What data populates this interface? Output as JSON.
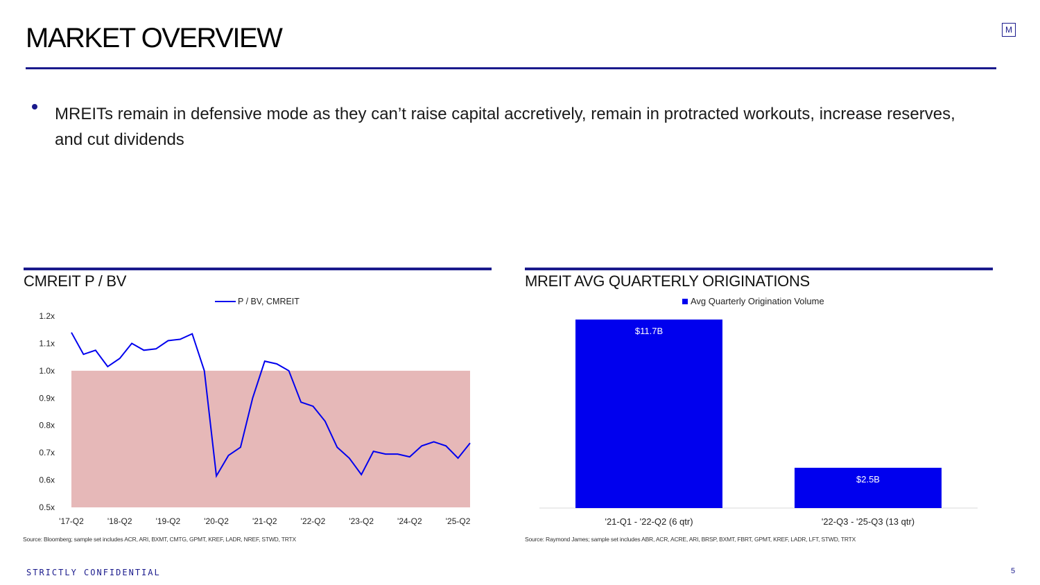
{
  "header": {
    "title": "MARKET OVERVIEW",
    "logo_letter": "M"
  },
  "bullet": {
    "text": "MREITs remain in defensive mode as they can’t raise capital accretively, remain in protracted workouts, increase reserves, and cut dividends"
  },
  "colors": {
    "navy": "#1a1a8c",
    "series_blue": "#0000ee",
    "band_fill": "#e6b8b8"
  },
  "chart_data": [
    {
      "type": "line",
      "section_title": "CMREIT P / BV",
      "series": [
        {
          "name": "P / BV, CMREIT",
          "values": [
            1.14,
            1.06,
            1.075,
            1.015,
            1.045,
            1.1,
            1.075,
            1.08,
            1.11,
            1.115,
            1.135,
            1.0,
            0.615,
            0.69,
            0.72,
            0.9,
            1.035,
            1.025,
            1.0,
            0.885,
            0.87,
            0.815,
            0.72,
            0.68,
            0.62,
            0.705,
            0.695,
            0.695,
            0.685,
            0.725,
            0.74,
            0.725,
            0.68,
            0.735
          ]
        }
      ],
      "x_tick_labels": [
        "'17-Q2",
        "'18-Q2",
        "'19-Q2",
        "'20-Q2",
        "'21-Q2",
        "'22-Q2",
        "'23-Q2",
        "'24-Q2",
        "'25-Q2"
      ],
      "y_tick_labels": [
        "0.5x",
        "0.6x",
        "0.7x",
        "0.8x",
        "0.9x",
        "1.0x",
        "1.1x",
        "1.2x"
      ],
      "ylim": [
        0.5,
        1.2
      ],
      "shaded_band": {
        "from": 0.5,
        "to": 1.0
      },
      "legend": "top-center",
      "grid": false,
      "source": "Source: Bloomberg; sample set includes ACR, ARI, BXMT, CMTG, GPMT, KREF, LADR, NREF, STWD, TRTX"
    },
    {
      "type": "bar",
      "section_title": "MREIT AVG QUARTERLY ORIGINATIONS",
      "categories": [
        "'21-Q1 - '22-Q2 (6 qtr)",
        "'22-Q3 - '25-Q3 (13 qtr)"
      ],
      "series": [
        {
          "name": "Avg Quarterly Origination Volume",
          "values": [
            11.7,
            2.5
          ]
        }
      ],
      "data_labels": [
        "$11.7B",
        "$2.5B"
      ],
      "ylim": [
        0,
        11.7
      ],
      "legend": "top-center",
      "grid": false,
      "source": "Source: Raymond James; sample set includes ABR, ACR, ACRE, ARI, BRSP, BXMT, FBRT, GPMT, KREF, LADR, LFT, STWD, TRTX"
    }
  ],
  "footer": {
    "confidential": "STRICTLY CONFIDENTIAL",
    "page_number": "5"
  }
}
